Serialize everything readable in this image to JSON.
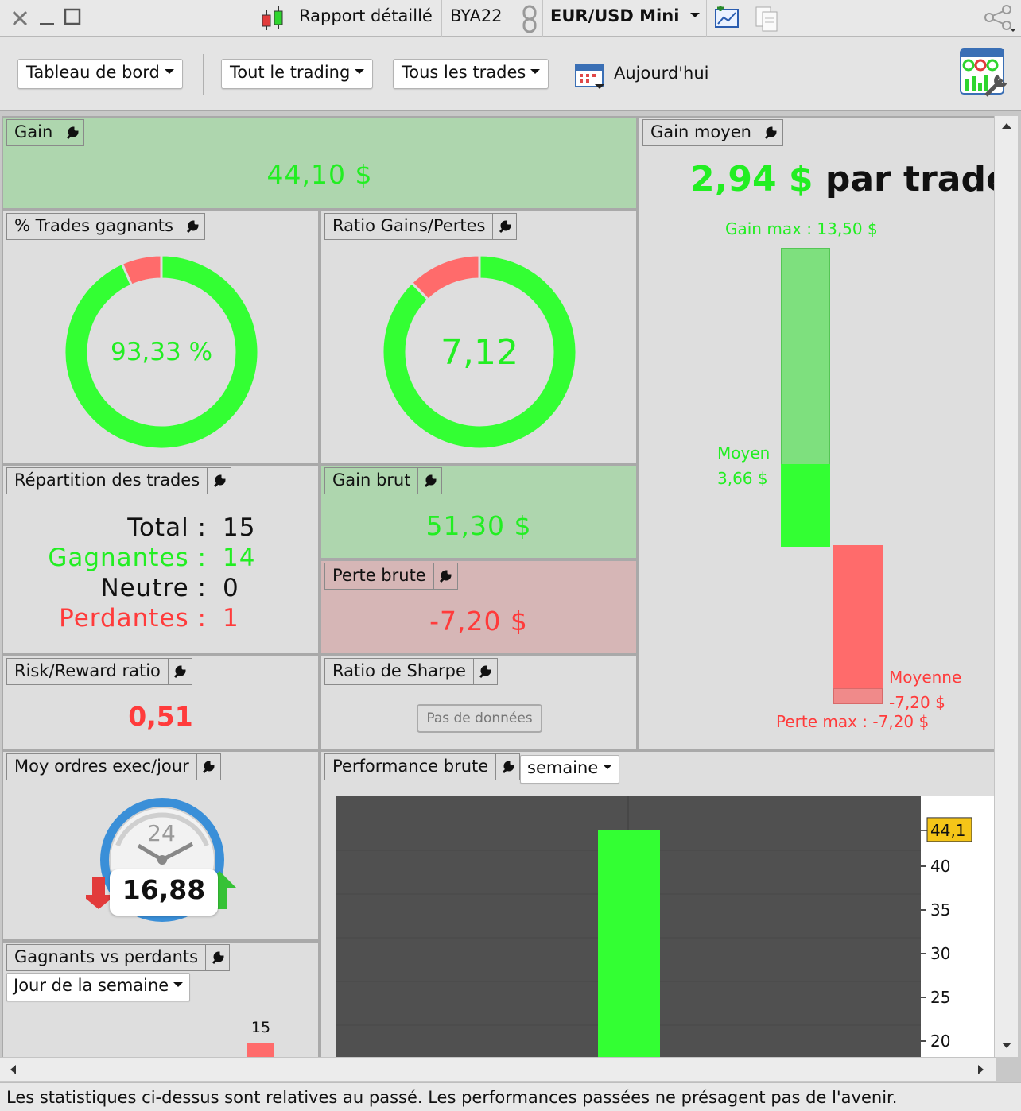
{
  "titlebar": {
    "report_label": "Rapport détaillé",
    "account": "BYA22",
    "instrument": "EUR/USD Mini"
  },
  "toolbar": {
    "dashboard": "Tableau de bord",
    "trading": "Tout le trading",
    "trades": "Tous les trades",
    "date": "Aujourd'hui"
  },
  "gain": {
    "title": "Gain",
    "value": "44,10 $"
  },
  "win_pct": {
    "title": "% Trades gagnants",
    "value": "93,33 %",
    "fraction": 0.9333
  },
  "gain_loss_ratio": {
    "title": "Ratio Gains/Pertes",
    "value": "7,12",
    "win_fraction": 0.8769
  },
  "avg_gain": {
    "title": "Gain moyen",
    "value": "2,94 $",
    "suffix": "par trade",
    "max_gain_label": "Gain max : 13,50 $",
    "avg_label": "Moyen",
    "avg_value": "3,66 $",
    "avg_loss_label": "Moyenne",
    "avg_loss_value": "-7,20 $",
    "max_loss_label": "Perte max : -7,20 $"
  },
  "distribution": {
    "title": "Répartition des trades",
    "total_label": "Total",
    "total": "15",
    "winners_label": "Gagnantes",
    "winners": "14",
    "neutral_label": "Neutre",
    "neutral": "0",
    "losers_label": "Perdantes",
    "losers": "1"
  },
  "gross_gain": {
    "title": "Gain brut",
    "value": "51,30 $"
  },
  "gross_loss": {
    "title": "Perte brute",
    "value": "-7,20 $"
  },
  "risk_reward": {
    "title": "Risk/Reward ratio",
    "value": "0,51"
  },
  "sharpe": {
    "title": "Ratio de Sharpe",
    "no_data": "Pas de données"
  },
  "avg_orders": {
    "title": "Moy ordres exec/jour",
    "value": "16,88",
    "clock_label": "24"
  },
  "winners_losers": {
    "title": "Gagnants vs perdants",
    "period": "Jour de la semaine",
    "bar_label": "15"
  },
  "performance": {
    "title": "Performance brute",
    "period": "semaine",
    "current_label": "44,1"
  },
  "footer": "Les statistiques ci-dessus sont relatives au passé. Les performances passées ne présagent pas de l'avenir.",
  "colors": {
    "win": "#33ff33",
    "loss": "#ff6b6b",
    "text_win": "#22ee22",
    "text_loss": "#ff3b3b"
  },
  "chart_data": {
    "type": "bar",
    "categories": [
      ""
    ],
    "values": [
      44.1
    ],
    "title": "",
    "xlabel": "",
    "ylabel": "",
    "yticks": [
      20,
      25,
      30,
      35,
      40
    ],
    "ylim": [
      18,
      48
    ]
  }
}
